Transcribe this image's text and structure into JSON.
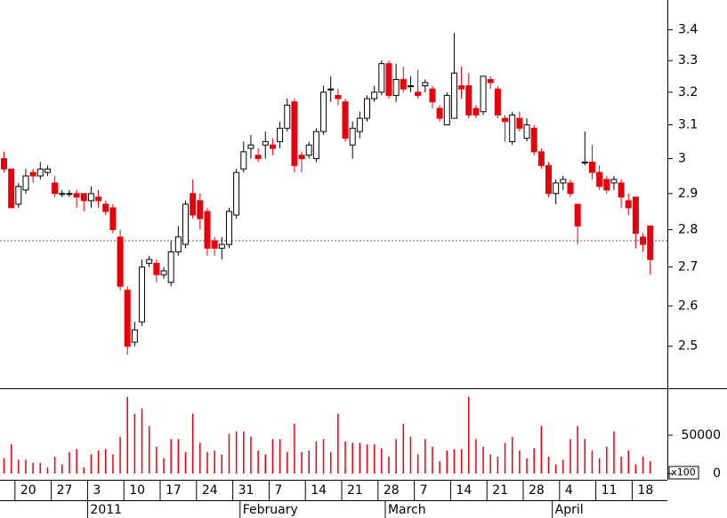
{
  "chart_data": {
    "type": "candlestick",
    "log": true,
    "ylim": [
      2.4,
      3.5
    ],
    "yticks": [
      2.5,
      2.6,
      2.7,
      2.8,
      2.9,
      3.0,
      3.1,
      3.2,
      3.3,
      3.4
    ],
    "reference_line": 2.77,
    "up_color": "#ffffff",
    "down_color": "#e8000b",
    "categories": [
      null,
      null,
      "20",
      null,
      null,
      null,
      null,
      "27",
      null,
      null,
      null,
      null,
      "3",
      null,
      null,
      null,
      null,
      "10",
      null,
      null,
      null,
      null,
      "17",
      null,
      null,
      null,
      null,
      "24",
      null,
      null,
      null,
      null,
      "31",
      null,
      null,
      null,
      null,
      "7",
      null,
      null,
      null,
      null,
      "14",
      null,
      null,
      null,
      null,
      "21",
      null,
      null,
      null,
      null,
      "28",
      null,
      null,
      null,
      null,
      "7",
      null,
      null,
      null,
      null,
      "14",
      null,
      null,
      null,
      null,
      "21",
      null,
      null,
      null,
      null,
      "28",
      null,
      null,
      null,
      null,
      "4",
      null,
      null,
      null,
      null,
      "11",
      null,
      null,
      null,
      null,
      "18",
      null,
      null
    ],
    "months": [
      null,
      null,
      null,
      null,
      null,
      null,
      null,
      null,
      null,
      null,
      null,
      null,
      "2011",
      null,
      null,
      null,
      null,
      null,
      null,
      null,
      null,
      null,
      null,
      null,
      null,
      null,
      null,
      null,
      null,
      null,
      null,
      null,
      null,
      "February",
      null,
      null,
      null,
      null,
      null,
      null,
      null,
      null,
      null,
      null,
      null,
      null,
      null,
      null,
      null,
      null,
      null,
      null,
      null,
      "March",
      null,
      null,
      null,
      null,
      null,
      null,
      null,
      null,
      null,
      null,
      null,
      null,
      null,
      null,
      null,
      null,
      null,
      null,
      null,
      null,
      null,
      null,
      "April",
      null,
      null,
      null,
      null,
      null,
      null,
      null,
      null,
      null,
      null,
      null,
      null,
      null
    ],
    "open": [
      3.0,
      2.97,
      2.87,
      2.91,
      2.96,
      2.95,
      2.96,
      2.93,
      2.9,
      2.9,
      2.9,
      2.9,
      2.88,
      2.89,
      2.87,
      2.86,
      2.78,
      2.64,
      2.51,
      2.56,
      2.71,
      2.71,
      2.68,
      2.66,
      2.74,
      2.76,
      2.9,
      2.88,
      2.85,
      2.77,
      2.75,
      2.76,
      2.84,
      2.97,
      3.03,
      3.01,
      3.04,
      3.04,
      3.05,
      3.09,
      3.17,
      3.01,
      3.01,
      3.0,
      3.08,
      3.21,
      3.19,
      3.17,
      3.04,
      3.08,
      3.12,
      3.18,
      3.2,
      3.29,
      3.19,
      3.24,
      3.22,
      3.2,
      3.22,
      3.21,
      3.15,
      3.1,
      3.12,
      3.22,
      3.22,
      3.15,
      3.14,
      3.24,
      3.21,
      3.12,
      3.05,
      3.12,
      3.06,
      3.09,
      3.02,
      2.98,
      2.9,
      2.93,
      2.93,
      2.87,
      2.99,
      2.99,
      2.96,
      2.94,
      2.93,
      2.93,
      2.88,
      2.89,
      2.78,
      2.81
    ],
    "high": [
      3.02,
      2.97,
      2.93,
      2.97,
      2.97,
      2.99,
      2.98,
      2.95,
      2.91,
      2.91,
      2.91,
      2.9,
      2.92,
      2.91,
      2.88,
      2.87,
      2.8,
      2.65,
      2.56,
      2.72,
      2.73,
      2.72,
      2.7,
      2.77,
      2.81,
      2.88,
      2.94,
      2.9,
      2.86,
      2.78,
      2.78,
      2.86,
      2.97,
      3.05,
      3.07,
      3.03,
      3.08,
      3.06,
      3.11,
      3.18,
      3.18,
      3.02,
      3.05,
      3.09,
      3.22,
      3.25,
      3.21,
      3.18,
      3.11,
      3.14,
      3.19,
      3.22,
      3.3,
      3.3,
      3.29,
      3.28,
      3.25,
      3.27,
      3.24,
      3.22,
      3.16,
      3.2,
      3.39,
      3.28,
      3.26,
      3.16,
      3.25,
      3.25,
      3.22,
      3.13,
      3.14,
      3.14,
      3.12,
      3.1,
      3.03,
      2.99,
      2.94,
      2.95,
      2.94,
      2.87,
      3.08,
      3.04,
      2.98,
      2.95,
      2.95,
      2.94,
      2.9,
      2.89,
      2.79,
      2.81
    ],
    "low": [
      2.96,
      2.86,
      2.86,
      2.9,
      2.93,
      2.94,
      2.95,
      2.89,
      2.89,
      2.89,
      2.86,
      2.85,
      2.86,
      2.86,
      2.84,
      2.79,
      2.64,
      2.48,
      2.5,
      2.55,
      2.7,
      2.66,
      2.67,
      2.65,
      2.73,
      2.75,
      2.83,
      2.8,
      2.73,
      2.73,
      2.72,
      2.75,
      2.83,
      2.96,
      3.0,
      2.99,
      3.0,
      3.01,
      3.03,
      3.08,
      2.96,
      2.96,
      3.0,
      2.99,
      3.07,
      3.17,
      3.16,
      3.05,
      3.0,
      3.06,
      3.11,
      3.17,
      3.19,
      3.18,
      3.17,
      3.2,
      3.2,
      3.18,
      3.2,
      3.15,
      3.11,
      3.1,
      3.12,
      3.18,
      3.12,
      3.12,
      3.13,
      3.21,
      3.12,
      3.05,
      3.04,
      3.08,
      3.05,
      3.01,
      2.97,
      2.89,
      2.87,
      2.91,
      2.89,
      2.76,
      2.98,
      2.94,
      2.91,
      2.9,
      2.91,
      2.86,
      2.84,
      2.75,
      2.74,
      2.68
    ],
    "close": [
      2.97,
      2.86,
      2.92,
      2.95,
      2.95,
      2.97,
      2.97,
      2.9,
      2.9,
      2.9,
      2.89,
      2.88,
      2.9,
      2.88,
      2.85,
      2.8,
      2.65,
      2.5,
      2.54,
      2.7,
      2.72,
      2.68,
      2.69,
      2.74,
      2.78,
      2.87,
      2.84,
      2.83,
      2.75,
      2.75,
      2.76,
      2.85,
      2.96,
      3.02,
      3.04,
      3.0,
      3.05,
      3.03,
      3.09,
      3.16,
      2.98,
      3.0,
      3.04,
      3.08,
      3.2,
      3.21,
      3.18,
      3.06,
      3.09,
      3.12,
      3.18,
      3.2,
      3.29,
      3.19,
      3.24,
      3.21,
      3.22,
      3.19,
      3.23,
      3.17,
      3.12,
      3.19,
      3.26,
      3.21,
      3.13,
      3.13,
      3.25,
      3.23,
      3.13,
      3.11,
      3.13,
      3.09,
      3.1,
      3.02,
      2.98,
      2.9,
      2.93,
      2.94,
      2.9,
      2.81,
      2.99,
      2.96,
      2.92,
      2.91,
      2.94,
      2.89,
      2.86,
      2.79,
      2.76,
      2.72
    ],
    "volume": [
      20000,
      38000,
      18000,
      18000,
      14000,
      14000,
      8000,
      22000,
      12000,
      28000,
      32000,
      8000,
      25000,
      30000,
      32000,
      25000,
      48000,
      100000,
      78000,
      85000,
      62000,
      35000,
      20000,
      45000,
      45000,
      28000,
      78000,
      40000,
      28000,
      30000,
      25000,
      52000,
      55000,
      55000,
      48000,
      30000,
      25000,
      45000,
      45000,
      28000,
      65000,
      28000,
      30000,
      42000,
      45000,
      28000,
      78000,
      42000,
      40000,
      40000,
      38000,
      38000,
      33000,
      22000,
      45000,
      65000,
      48000,
      25000,
      45000,
      35000,
      16000,
      30000,
      32000,
      32000,
      100000,
      45000,
      35000,
      25000,
      22000,
      40000,
      48000,
      30000,
      20000,
      33000,
      62000,
      22000,
      12000,
      18000,
      45000,
      62000,
      45000,
      30000,
      20000,
      35000,
      55000,
      22000,
      30000,
      12000,
      22000,
      16000
    ],
    "volume_color": "#e8000b",
    "volume_ylim": [
      0,
      110000
    ],
    "volume_yticks": [
      0,
      50000
    ],
    "volume_unit": "x100"
  }
}
